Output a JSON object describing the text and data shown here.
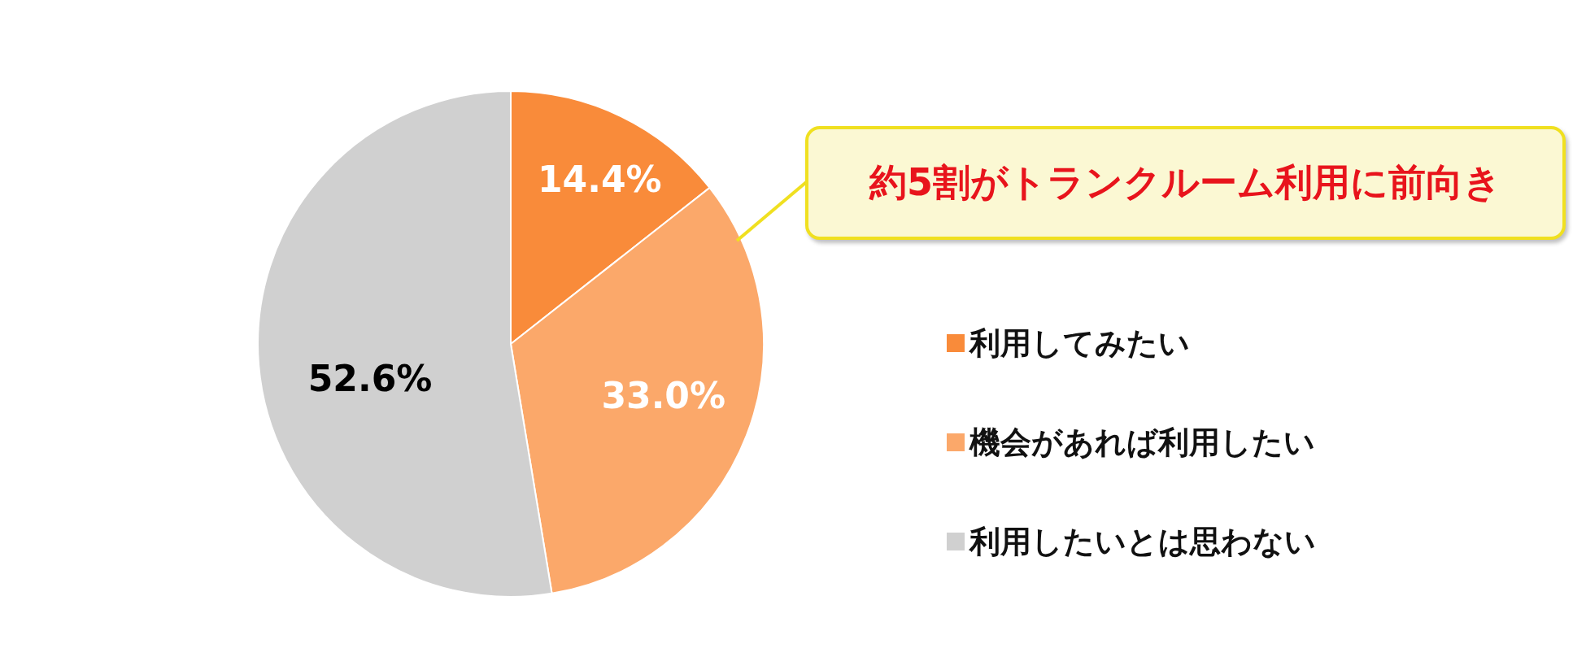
{
  "chart_data": {
    "type": "pie",
    "categories": [
      "利用してみたい",
      "機会があれば利用したい",
      "利用したいとは思わない"
    ],
    "values": [
      14.4,
      33.0,
      52.6
    ],
    "colors": [
      "#f98b3a",
      "#fba86a",
      "#d0d0d0"
    ],
    "value_labels": [
      "14.4%",
      "33.0%",
      "52.6%"
    ],
    "annotations": [
      "約5割がトランクルーム利用に前向き"
    ],
    "legend": "right"
  }
}
